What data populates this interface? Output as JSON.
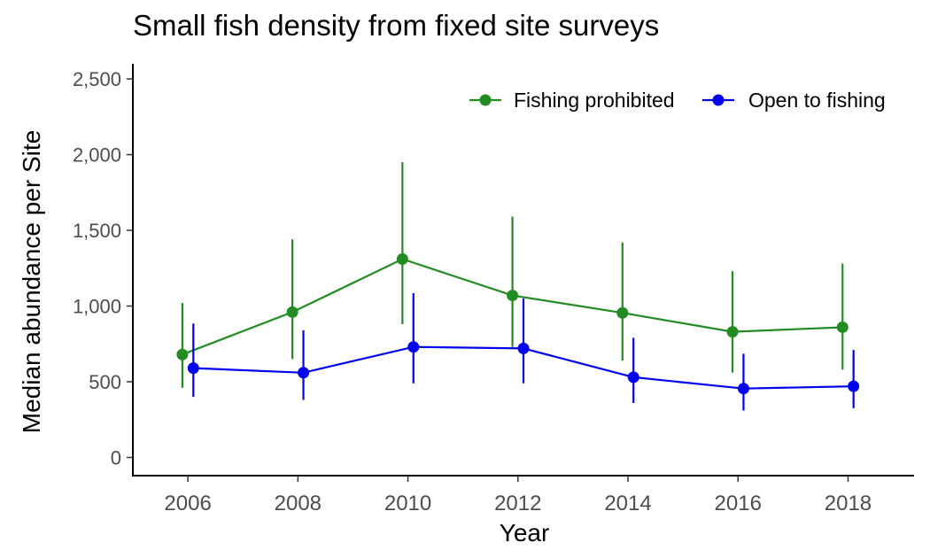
{
  "chart_data": {
    "type": "line",
    "title": "Small fish density from fixed site surveys",
    "xlabel": "Year",
    "ylabel": "Median abundance per Site",
    "xlim": [
      2005,
      2019.2
    ],
    "ylim": [
      -120,
      2600
    ],
    "x_ticks": [
      2006,
      2008,
      2010,
      2012,
      2014,
      2016,
      2018
    ],
    "y_ticks": [
      0,
      500,
      1000,
      1500,
      2000,
      2500
    ],
    "y_tick_labels": [
      "0",
      "500",
      "1,000",
      "1,500",
      "2,000",
      "2,500"
    ],
    "grid": false,
    "legend_position": "top-right",
    "series": [
      {
        "name": "Fishing prohibited",
        "color": "#228b22",
        "x": [
          2006,
          2008,
          2010,
          2012,
          2014,
          2016,
          2018
        ],
        "y": [
          680,
          960,
          1310,
          1070,
          955,
          830,
          860
        ],
        "lower": [
          460,
          650,
          880,
          730,
          640,
          560,
          580
        ],
        "upper": [
          1020,
          1440,
          1950,
          1590,
          1420,
          1230,
          1280
        ]
      },
      {
        "name": "Open to fishing",
        "color": "#0000ee",
        "x": [
          2006,
          2008,
          2010,
          2012,
          2014,
          2016,
          2018
        ],
        "y": [
          590,
          560,
          730,
          720,
          530,
          455,
          470
        ],
        "lower": [
          400,
          380,
          490,
          490,
          360,
          310,
          325
        ],
        "upper": [
          885,
          840,
          1085,
          1050,
          790,
          685,
          710
        ]
      }
    ]
  }
}
